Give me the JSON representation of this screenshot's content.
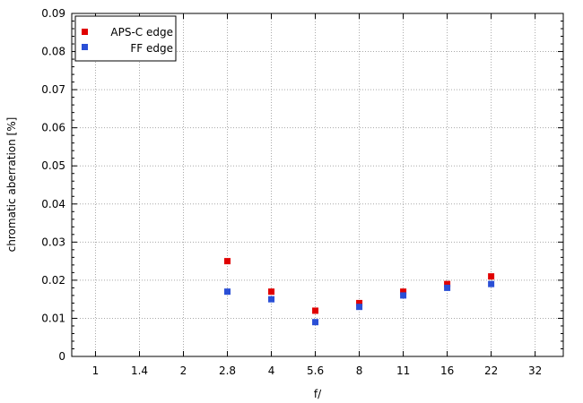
{
  "chart_data": {
    "type": "scatter",
    "xlabel": "f/",
    "ylabel": "chromatic  aberration  [%]",
    "x_categories": [
      "1",
      "1.4",
      "2",
      "2.8",
      "4",
      "5.6",
      "8",
      "11",
      "16",
      "22",
      "32"
    ],
    "ylim": [
      0,
      0.09
    ],
    "yticks": [
      "0",
      "0.01",
      "0.02",
      "0.03",
      "0.04",
      "0.05",
      "0.06",
      "0.07",
      "0.08",
      "0.09"
    ],
    "grid": true,
    "legend_position": "top-left",
    "series": [
      {
        "name": "APS-C edge",
        "color": "#e00000",
        "points": [
          {
            "x": "2.8",
            "y": 0.025
          },
          {
            "x": "4",
            "y": 0.017
          },
          {
            "x": "5.6",
            "y": 0.012
          },
          {
            "x": "8",
            "y": 0.014
          },
          {
            "x": "11",
            "y": 0.017
          },
          {
            "x": "16",
            "y": 0.019
          },
          {
            "x": "22",
            "y": 0.021
          }
        ]
      },
      {
        "name": "FF edge",
        "color": "#2a4fd6",
        "points": [
          {
            "x": "2.8",
            "y": 0.017
          },
          {
            "x": "4",
            "y": 0.015
          },
          {
            "x": "5.6",
            "y": 0.009
          },
          {
            "x": "8",
            "y": 0.013
          },
          {
            "x": "11",
            "y": 0.016
          },
          {
            "x": "16",
            "y": 0.018
          },
          {
            "x": "22",
            "y": 0.019
          }
        ]
      }
    ]
  }
}
